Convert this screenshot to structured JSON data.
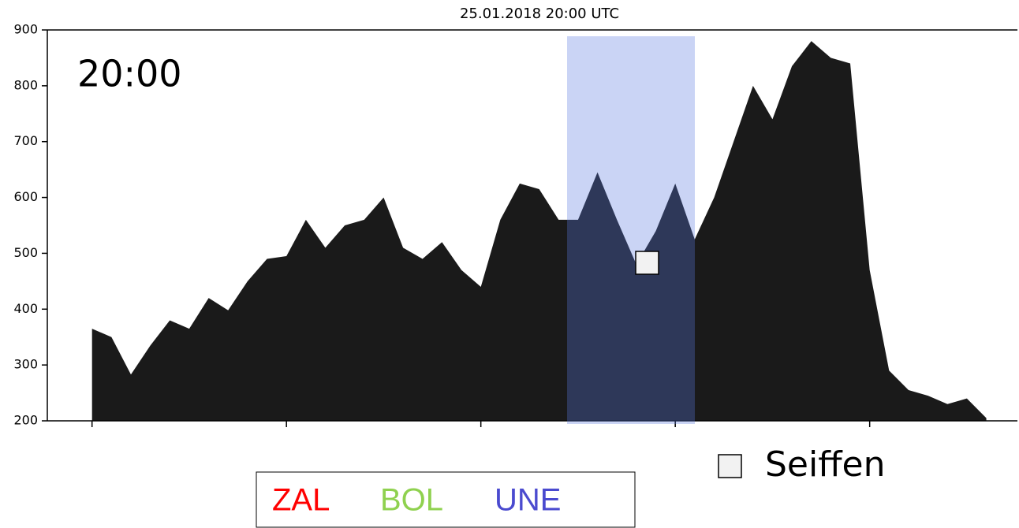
{
  "chart_data": {
    "type": "area",
    "title": "25.01.2018 20:00 UTC",
    "annotation": "20:00",
    "station": "Seiffen",
    "x": [
      0,
      1,
      2,
      3,
      4,
      5,
      6,
      7,
      8,
      9,
      10,
      11,
      12,
      13,
      14,
      15,
      16,
      17,
      18,
      19,
      20,
      21,
      22,
      23,
      24,
      25,
      26,
      27,
      28,
      29,
      30,
      31,
      32,
      33,
      34,
      35,
      36,
      37,
      38,
      39,
      40,
      41,
      42,
      43,
      44,
      45,
      46
    ],
    "series": [
      {
        "color": "#1a1a1a",
        "values": [
          365,
          350,
          283,
          335,
          380,
          365,
          420,
          398,
          450,
          490,
          495,
          560,
          510,
          550,
          560,
          600,
          510,
          490,
          520,
          470,
          440,
          560,
          625,
          615,
          560,
          560,
          645,
          560,
          480,
          540,
          625,
          525,
          600,
          700,
          800,
          740,
          835,
          880,
          850,
          840,
          470,
          290,
          255,
          245,
          230,
          240,
          205
        ]
      }
    ],
    "legend": [
      {
        "name": "ZAL",
        "color": "#ff0000"
      },
      {
        "name": "BOL",
        "color": "#8fd14f"
      },
      {
        "name": "UNE",
        "color": "#4a4acf"
      }
    ],
    "xlim": [
      -2.3,
      47.6
    ],
    "xticks": [
      0,
      10,
      20,
      30,
      40
    ],
    "ylim": [
      200,
      900
    ],
    "yticks": [
      200,
      300,
      400,
      500,
      600,
      700,
      800,
      900
    ]
  }
}
